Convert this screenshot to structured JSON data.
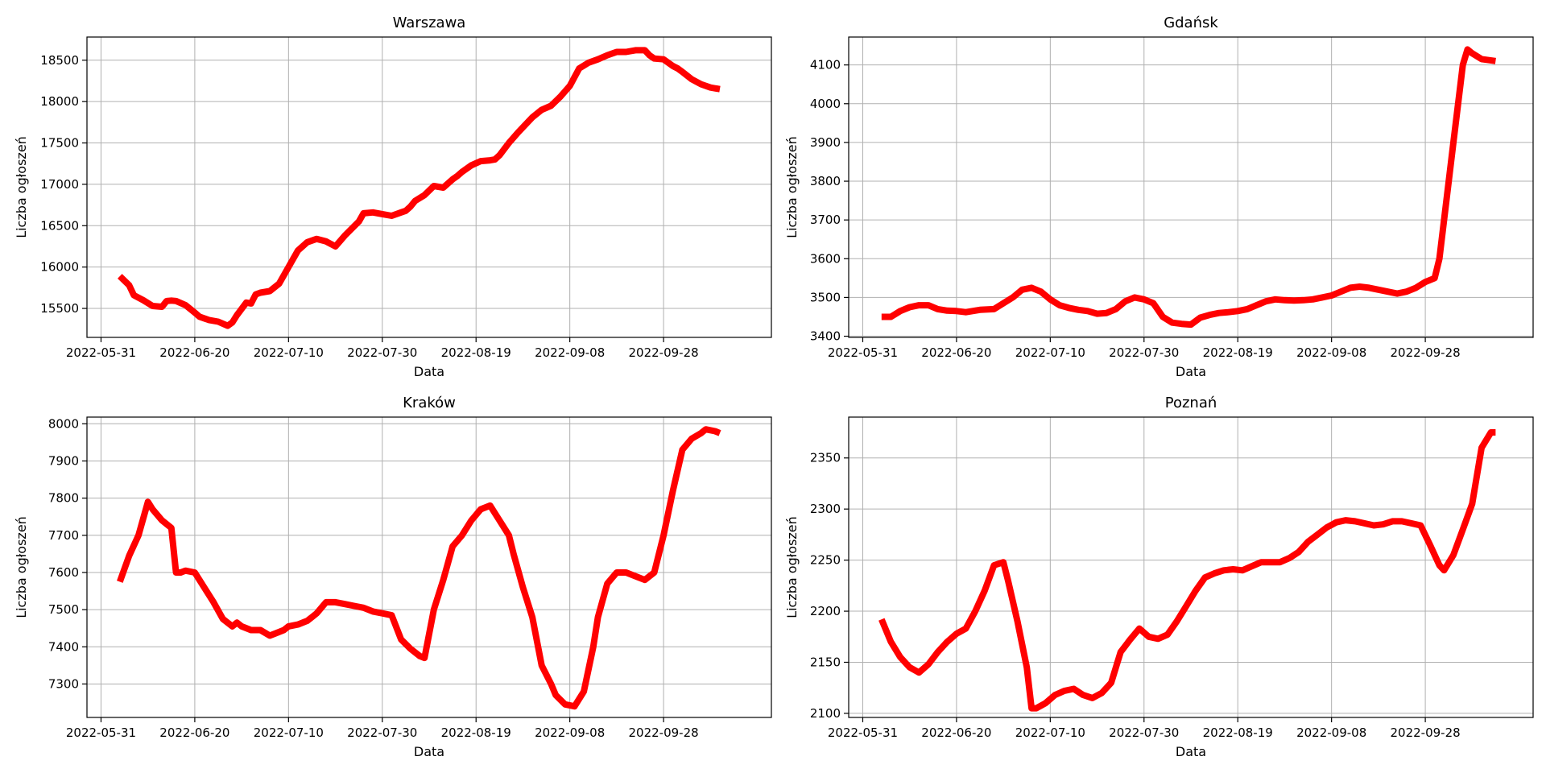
{
  "figure": {
    "background": "#ffffff",
    "line_color": "#ff0000",
    "grid": true
  },
  "x_ticks": [
    "2022-05-31",
    "2022-06-20",
    "2022-07-10",
    "2022-07-30",
    "2022-08-19",
    "2022-09-08",
    "2022-09-28"
  ],
  "chart_data": [
    {
      "type": "line",
      "title": "Warszawa",
      "xlabel": "Data",
      "ylabel": "Liczba ogłoszeń",
      "xlim": [
        "2022-05-28",
        "2022-10-21"
      ],
      "ylim": [
        15150,
        18780
      ],
      "y_ticks": [
        15500,
        16000,
        16500,
        17000,
        17500,
        18000,
        18500
      ],
      "series": [
        {
          "x": [
            "2022-06-04",
            "2022-06-06",
            "2022-06-07",
            "2022-06-09",
            "2022-06-11",
            "2022-06-13",
            "2022-06-14",
            "2022-06-15",
            "2022-06-16",
            "2022-06-18",
            "2022-06-20",
            "2022-06-21",
            "2022-06-23",
            "2022-06-25",
            "2022-06-27",
            "2022-06-28",
            "2022-06-29",
            "2022-07-01",
            "2022-07-02",
            "2022-07-03",
            "2022-07-04",
            "2022-07-06",
            "2022-07-08",
            "2022-07-10",
            "2022-07-12",
            "2022-07-14",
            "2022-07-16",
            "2022-07-18",
            "2022-07-20",
            "2022-07-22",
            "2022-07-25",
            "2022-07-26",
            "2022-07-28",
            "2022-07-30",
            "2022-08-01",
            "2022-08-03",
            "2022-08-04",
            "2022-08-05",
            "2022-08-06",
            "2022-08-08",
            "2022-08-10",
            "2022-08-12",
            "2022-08-14",
            "2022-08-15",
            "2022-08-16",
            "2022-08-18",
            "2022-08-20",
            "2022-08-22",
            "2022-08-23",
            "2022-08-24",
            "2022-08-26",
            "2022-08-28",
            "2022-08-31",
            "2022-09-02",
            "2022-09-04",
            "2022-09-06",
            "2022-09-08",
            "2022-09-10",
            "2022-09-12",
            "2022-09-14",
            "2022-09-16",
            "2022-09-18",
            "2022-09-20",
            "2022-09-22",
            "2022-09-24",
            "2022-09-25",
            "2022-09-26",
            "2022-09-28",
            "2022-09-30",
            "2022-10-01",
            "2022-10-02",
            "2022-10-04",
            "2022-10-06",
            "2022-10-08",
            "2022-10-10"
          ],
          "y": [
            15890,
            15780,
            15660,
            15600,
            15530,
            15520,
            15590,
            15595,
            15590,
            15540,
            15450,
            15400,
            15360,
            15340,
            15290,
            15330,
            15420,
            15570,
            15560,
            15670,
            15690,
            15710,
            15800,
            16000,
            16200,
            16300,
            16340,
            16310,
            16250,
            16380,
            16550,
            16650,
            16660,
            16640,
            16620,
            16660,
            16680,
            16730,
            16800,
            16870,
            16980,
            16960,
            17060,
            17100,
            17150,
            17230,
            17280,
            17290,
            17300,
            17350,
            17500,
            17630,
            17810,
            17900,
            17950,
            18060,
            18190,
            18400,
            18470,
            18510,
            18560,
            18600,
            18600,
            18620,
            18620,
            18560,
            18520,
            18510,
            18430,
            18400,
            18360,
            18270,
            18210,
            18170,
            18150
          ]
        }
      ]
    },
    {
      "type": "line",
      "title": "Gdańsk",
      "xlabel": "Data",
      "ylabel": "Liczba ogłoszeń",
      "xlim": [
        "2022-05-28",
        "2022-10-21"
      ],
      "ylim": [
        3397,
        4172
      ],
      "y_ticks": [
        3400,
        3500,
        3600,
        3700,
        3800,
        3900,
        4000,
        4100
      ],
      "series": [
        {
          "x": [
            "2022-06-04",
            "2022-06-06",
            "2022-06-08",
            "2022-06-10",
            "2022-06-12",
            "2022-06-14",
            "2022-06-16",
            "2022-06-18",
            "2022-06-20",
            "2022-06-22",
            "2022-06-25",
            "2022-06-28",
            "2022-06-30",
            "2022-07-02",
            "2022-07-04",
            "2022-07-06",
            "2022-07-08",
            "2022-07-10",
            "2022-07-12",
            "2022-07-14",
            "2022-07-16",
            "2022-07-18",
            "2022-07-20",
            "2022-07-22",
            "2022-07-24",
            "2022-07-26",
            "2022-07-28",
            "2022-07-30",
            "2022-08-01",
            "2022-08-03",
            "2022-08-05",
            "2022-08-07",
            "2022-08-09",
            "2022-08-11",
            "2022-08-13",
            "2022-08-15",
            "2022-08-17",
            "2022-08-19",
            "2022-08-21",
            "2022-08-23",
            "2022-08-25",
            "2022-08-27",
            "2022-08-29",
            "2022-08-31",
            "2022-09-02",
            "2022-09-04",
            "2022-09-06",
            "2022-09-08",
            "2022-09-10",
            "2022-09-12",
            "2022-09-14",
            "2022-09-16",
            "2022-09-18",
            "2022-09-20",
            "2022-09-22",
            "2022-09-24",
            "2022-09-26",
            "2022-09-28",
            "2022-09-30",
            "2022-10-01",
            "2022-10-02",
            "2022-10-04",
            "2022-10-06",
            "2022-10-07",
            "2022-10-08",
            "2022-10-10",
            "2022-10-13"
          ],
          "y": [
            3450,
            3450,
            3465,
            3475,
            3480,
            3480,
            3470,
            3466,
            3465,
            3462,
            3468,
            3470,
            3485,
            3500,
            3520,
            3525,
            3515,
            3495,
            3480,
            3473,
            3468,
            3465,
            3458,
            3460,
            3470,
            3490,
            3500,
            3495,
            3485,
            3450,
            3435,
            3432,
            3430,
            3448,
            3455,
            3460,
            3462,
            3465,
            3470,
            3480,
            3490,
            3495,
            3493,
            3492,
            3493,
            3495,
            3500,
            3505,
            3515,
            3525,
            3528,
            3525,
            3520,
            3515,
            3510,
            3515,
            3525,
            3540,
            3550,
            3600,
            3700,
            3900,
            4100,
            4140,
            4130,
            4115,
            4110
          ]
        }
      ]
    },
    {
      "type": "line",
      "title": "Kraków",
      "xlabel": "Data",
      "ylabel": "Liczba ogłoszeń",
      "xlim": [
        "2022-05-28",
        "2022-10-21"
      ],
      "ylim": [
        7210,
        8018
      ],
      "y_ticks": [
        7300,
        7400,
        7500,
        7600,
        7700,
        7800,
        7900,
        8000
      ],
      "series": [
        {
          "x": [
            "2022-06-04",
            "2022-06-06",
            "2022-06-08",
            "2022-06-10",
            "2022-06-11",
            "2022-06-13",
            "2022-06-15",
            "2022-06-16",
            "2022-06-17",
            "2022-06-18",
            "2022-06-20",
            "2022-06-22",
            "2022-06-24",
            "2022-06-26",
            "2022-06-28",
            "2022-06-29",
            "2022-06-30",
            "2022-07-02",
            "2022-07-04",
            "2022-07-06",
            "2022-07-07",
            "2022-07-09",
            "2022-07-10",
            "2022-07-12",
            "2022-07-14",
            "2022-07-15",
            "2022-07-16",
            "2022-07-18",
            "2022-07-20",
            "2022-07-22",
            "2022-07-24",
            "2022-07-26",
            "2022-07-28",
            "2022-07-30",
            "2022-08-01",
            "2022-08-03",
            "2022-08-05",
            "2022-08-07",
            "2022-08-08",
            "2022-08-10",
            "2022-08-12",
            "2022-08-14",
            "2022-08-16",
            "2022-08-18",
            "2022-08-20",
            "2022-08-22",
            "2022-08-24",
            "2022-08-26",
            "2022-08-27",
            "2022-08-29",
            "2022-08-31",
            "2022-09-02",
            "2022-09-04",
            "2022-09-05",
            "2022-09-07",
            "2022-09-09",
            "2022-09-11",
            "2022-09-13",
            "2022-09-14",
            "2022-09-16",
            "2022-09-18",
            "2022-09-20",
            "2022-09-22",
            "2022-09-24",
            "2022-09-26",
            "2022-09-28",
            "2022-09-30",
            "2022-10-02",
            "2022-10-04",
            "2022-10-06",
            "2022-10-07",
            "2022-10-09",
            "2022-10-10"
          ],
          "y": [
            7575,
            7645,
            7700,
            7790,
            7770,
            7740,
            7720,
            7600,
            7600,
            7605,
            7600,
            7560,
            7520,
            7475,
            7455,
            7465,
            7455,
            7445,
            7445,
            7430,
            7435,
            7445,
            7455,
            7460,
            7470,
            7480,
            7490,
            7520,
            7520,
            7515,
            7510,
            7505,
            7495,
            7490,
            7485,
            7420,
            7395,
            7375,
            7370,
            7500,
            7580,
            7670,
            7700,
            7740,
            7770,
            7780,
            7740,
            7700,
            7650,
            7560,
            7480,
            7350,
            7300,
            7270,
            7245,
            7240,
            7280,
            7400,
            7480,
            7570,
            7600,
            7600,
            7590,
            7580,
            7600,
            7700,
            7820,
            7930,
            7960,
            7975,
            7985,
            7980,
            7975
          ]
        }
      ]
    },
    {
      "type": "line",
      "title": "Poznań",
      "xlabel": "Data",
      "ylabel": "Liczba ogłoszeń",
      "xlim": [
        "2022-05-28",
        "2022-10-21"
      ],
      "ylim": [
        2096,
        2390
      ],
      "y_ticks": [
        2100,
        2150,
        2200,
        2250,
        2300,
        2350
      ],
      "series": [
        {
          "x": [
            "2022-06-04",
            "2022-06-06",
            "2022-06-08",
            "2022-06-10",
            "2022-06-12",
            "2022-06-14",
            "2022-06-16",
            "2022-06-18",
            "2022-06-20",
            "2022-06-22",
            "2022-06-24",
            "2022-06-26",
            "2022-06-28",
            "2022-06-30",
            "2022-07-01",
            "2022-07-03",
            "2022-07-05",
            "2022-07-06",
            "2022-07-07",
            "2022-07-09",
            "2022-07-11",
            "2022-07-13",
            "2022-07-15",
            "2022-07-17",
            "2022-07-19",
            "2022-07-21",
            "2022-07-23",
            "2022-07-25",
            "2022-07-27",
            "2022-07-29",
            "2022-07-31",
            "2022-08-02",
            "2022-08-04",
            "2022-08-06",
            "2022-08-08",
            "2022-08-10",
            "2022-08-12",
            "2022-08-14",
            "2022-08-16",
            "2022-08-18",
            "2022-08-20",
            "2022-08-22",
            "2022-08-24",
            "2022-08-26",
            "2022-08-28",
            "2022-08-30",
            "2022-09-01",
            "2022-09-03",
            "2022-09-05",
            "2022-09-07",
            "2022-09-09",
            "2022-09-11",
            "2022-09-13",
            "2022-09-15",
            "2022-09-17",
            "2022-09-19",
            "2022-09-21",
            "2022-09-23",
            "2022-09-25",
            "2022-09-27",
            "2022-09-29",
            "2022-10-01",
            "2022-10-02",
            "2022-10-04",
            "2022-10-06",
            "2022-10-08",
            "2022-10-10",
            "2022-10-12",
            "2022-10-13"
          ],
          "y": [
            2192,
            2170,
            2155,
            2145,
            2140,
            2148,
            2160,
            2170,
            2178,
            2183,
            2200,
            2220,
            2245,
            2248,
            2230,
            2190,
            2145,
            2105,
            2105,
            2110,
            2118,
            2122,
            2124,
            2118,
            2115,
            2120,
            2130,
            2160,
            2172,
            2183,
            2175,
            2173,
            2177,
            2190,
            2205,
            2220,
            2233,
            2237,
            2240,
            2241,
            2240,
            2244,
            2248,
            2248,
            2248,
            2252,
            2258,
            2268,
            2275,
            2282,
            2287,
            2289,
            2288,
            2286,
            2284,
            2285,
            2288,
            2288,
            2286,
            2284,
            2265,
            2245,
            2240,
            2255,
            2280,
            2305,
            2360,
            2375,
            2375
          ]
        }
      ]
    }
  ]
}
